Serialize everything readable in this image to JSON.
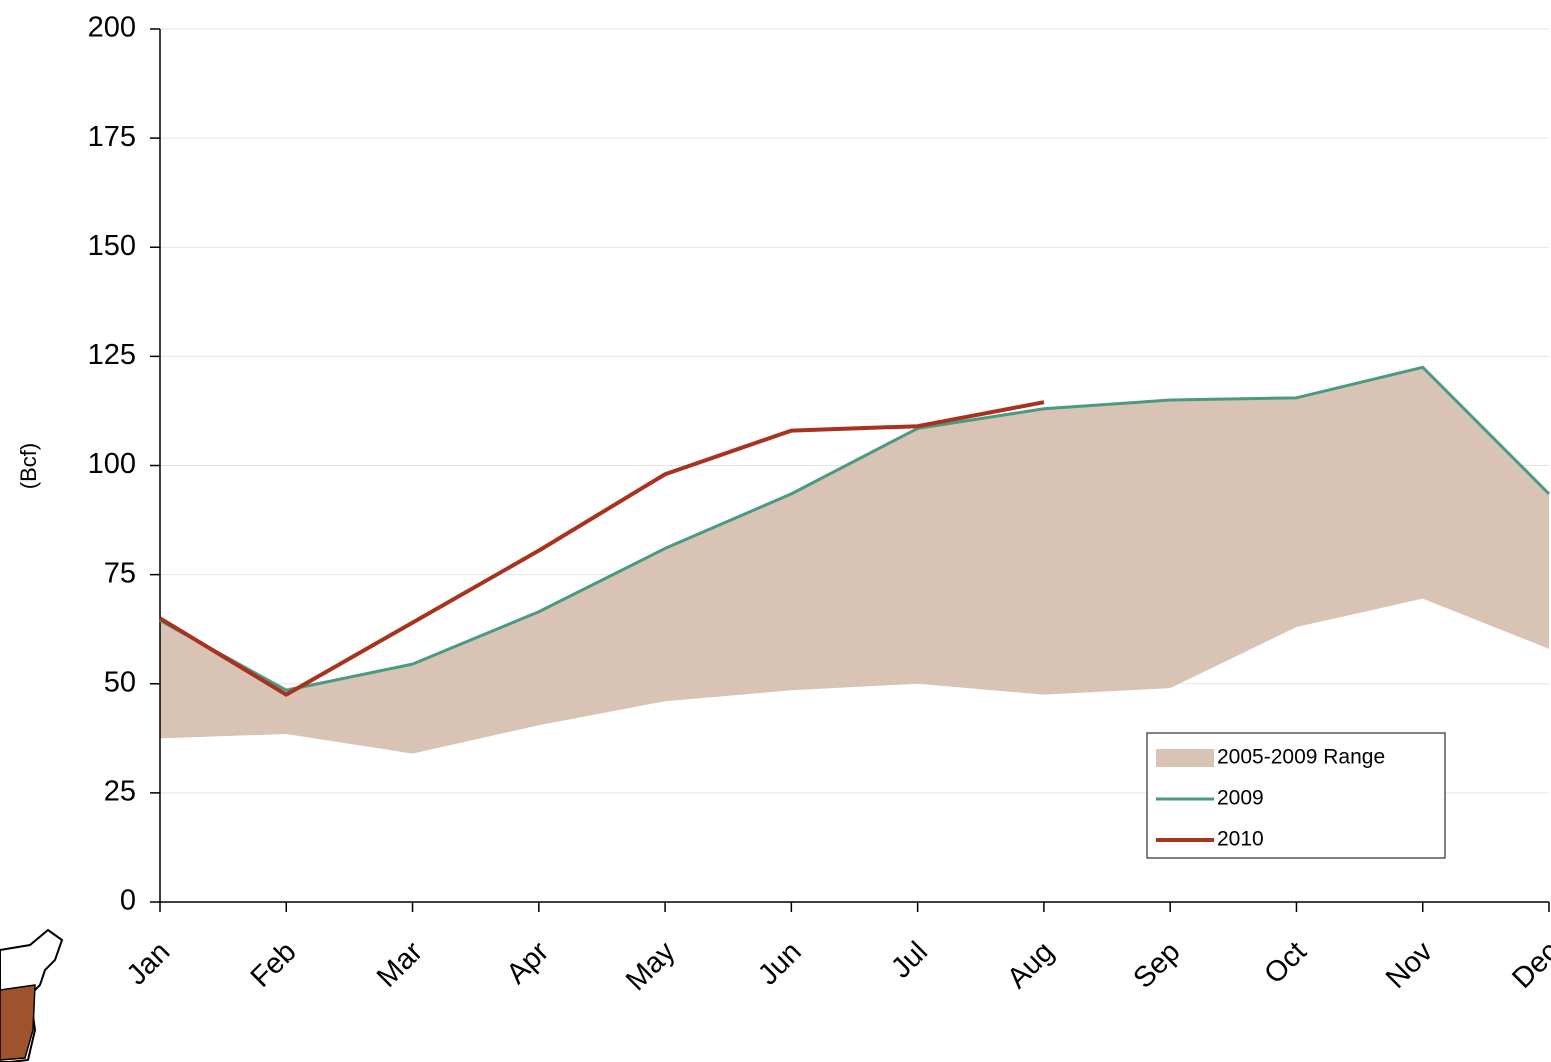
{
  "chart_data": {
    "type": "line",
    "y_label": "(Bcf)",
    "categories": [
      "Jan",
      "Feb",
      "Mar",
      "Apr",
      "May",
      "Jun",
      "Jul",
      "Aug",
      "Sep",
      "Oct",
      "Nov",
      "Dec"
    ],
    "range": {
      "name": "2005-2009 Range",
      "color": "#d9c3b5",
      "low": [
        37.5,
        38.5,
        34,
        40.5,
        46,
        48.5,
        50,
        47.5,
        49,
        63,
        69.5,
        58
      ],
      "high": [
        64.5,
        49,
        54.5,
        66.5,
        81,
        93.5,
        108.5,
        113,
        115,
        115.5,
        122.5,
        93.5
      ]
    },
    "series": [
      {
        "name": "2009",
        "color": "#4a9a82",
        "values": [
          64.5,
          48.5,
          54.5,
          66.5,
          81,
          93.5,
          108.5,
          113,
          115,
          115.5,
          122.5,
          93.5
        ]
      },
      {
        "name": "2010",
        "color": "#a8321e",
        "values": [
          65,
          47.5,
          64,
          80.5,
          98,
          108,
          109,
          114.5,
          null,
          null,
          null,
          null
        ]
      }
    ],
    "ylim": [
      0,
      200
    ],
    "yticks": [
      0,
      25,
      50,
      75,
      100,
      125,
      150,
      175,
      200
    ],
    "grid": true,
    "legend": "lower-right"
  }
}
